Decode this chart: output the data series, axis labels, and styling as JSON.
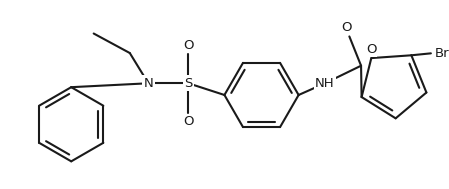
{
  "bg_color": "#ffffff",
  "bond_color": "#1a1a1a",
  "text_color": "#1a1a1a",
  "line_width": 1.5,
  "figsize": [
    4.49,
    1.89
  ],
  "dpi": 100,
  "xlim": [
    0,
    449
  ],
  "ylim": [
    0,
    189
  ]
}
